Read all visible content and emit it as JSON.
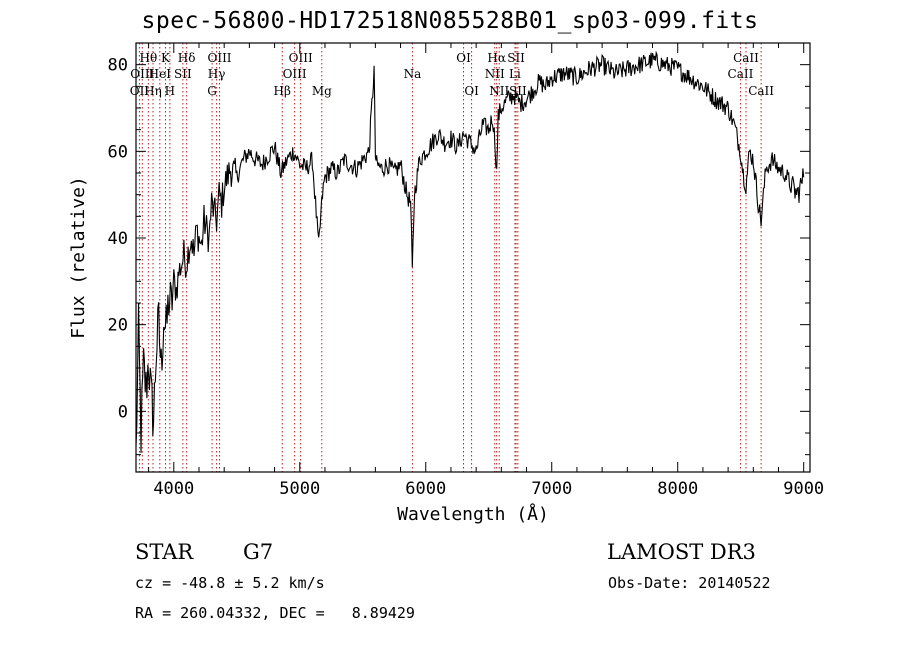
{
  "header": {
    "title": "spec-56800-HD172518N085528B01_sp03-099.fits"
  },
  "info": {
    "class": "STAR",
    "subclass": "G7",
    "survey": "LAMOST DR3",
    "cz": "cz = -48.8 ± 5.2 km/s",
    "obs_date": "Obs-Date: 20140522",
    "radec": "RA = 260.04332, DEC =   8.89429"
  },
  "colors": {
    "line_marker": "#b22222",
    "spectrum": "#000000"
  },
  "chart_data": {
    "type": "line",
    "title": "spec-56800-HD172518N085528B01_sp03-099.fits",
    "xlabel": "Wavelength (Å)",
    "ylabel": "Flux (relative)",
    "xlim": [
      3700,
      9050
    ],
    "ylim": [
      -14,
      85
    ],
    "xticks": [
      4000,
      5000,
      6000,
      7000,
      8000,
      9000
    ],
    "yticks": [
      0,
      20,
      40,
      60,
      80
    ],
    "grid": false,
    "series": [
      {
        "values_x": [
          3700,
          3720,
          3740,
          3760,
          3780,
          3800,
          3820,
          3840,
          3860,
          3880,
          3900,
          3920,
          3940,
          3960,
          3980,
          4000,
          4020,
          4040,
          4060,
          4080,
          4100,
          4120,
          4140,
          4160,
          4180,
          4200,
          4220,
          4240,
          4260,
          4280,
          4300,
          4320,
          4340,
          4360,
          4380,
          4400,
          4450,
          4500,
          4550,
          4600,
          4650,
          4700,
          4750,
          4800,
          4850,
          4900,
          4950,
          5000,
          5050,
          5100,
          5150,
          5180,
          5200,
          5250,
          5300,
          5350,
          5400,
          5450,
          5500,
          5550,
          5590,
          5600,
          5610,
          5650,
          5700,
          5750,
          5800,
          5850,
          5880,
          5893,
          5910,
          5950,
          6000,
          6050,
          6100,
          6150,
          6200,
          6250,
          6300,
          6350,
          6400,
          6450,
          6500,
          6530,
          6550,
          6563,
          6575,
          6600,
          6650,
          6700,
          6750,
          6800,
          6850,
          6900,
          6950,
          7000,
          7100,
          7200,
          7300,
          7400,
          7500,
          7600,
          7700,
          7800,
          7900,
          8000,
          8100,
          8200,
          8300,
          8400,
          8450,
          8498,
          8520,
          8542,
          8570,
          8600,
          8640,
          8662,
          8700,
          8750,
          8800,
          8850,
          8900,
          8950,
          9000
        ],
        "values_y": [
          -10,
          18,
          -5,
          10,
          5,
          12,
          3,
          -2,
          14,
          20,
          10,
          22,
          18,
          26,
          24,
          30,
          28,
          32,
          34,
          36,
          34,
          38,
          40,
          36,
          42,
          40,
          38,
          44,
          42,
          40,
          48,
          46,
          44,
          50,
          48,
          52,
          56,
          54,
          58,
          60,
          58,
          57,
          59,
          61,
          55,
          58,
          60,
          57,
          56,
          58,
          38,
          50,
          54,
          56,
          55,
          58,
          57,
          56,
          58,
          60,
          79,
          59,
          57,
          56,
          57,
          55,
          57,
          50,
          48,
          32,
          50,
          58,
          60,
          62,
          64,
          62,
          63,
          61,
          64,
          62,
          60,
          66,
          65,
          68,
          62,
          55,
          68,
          70,
          72,
          73,
          71,
          72,
          74,
          76,
          75,
          77,
          78,
          77,
          79,
          80,
          78,
          79,
          80,
          81,
          80,
          79,
          77,
          75,
          72,
          70,
          66,
          60,
          55,
          52,
          60,
          58,
          48,
          44,
          56,
          58,
          56,
          55,
          52,
          50,
          54
        ]
      }
    ],
    "line_markers": [
      {
        "label": "OII",
        "x": 3727,
        "row": 3
      },
      {
        "label": "Hθ",
        "x": 3798,
        "row": 1
      },
      {
        "label": "OIII",
        "x": 3750,
        "row": 2
      },
      {
        "label": "Hη",
        "x": 3835,
        "row": 3
      },
      {
        "label": "HeI",
        "x": 3889,
        "row": 2
      },
      {
        "label": "K",
        "x": 3934,
        "row": 1
      },
      {
        "label": "H",
        "x": 3969,
        "row": 3
      },
      {
        "label": "SII",
        "x": 4072,
        "row": 2
      },
      {
        "label": "Hδ",
        "x": 4102,
        "row": 1
      },
      {
        "label": "OIII",
        "x": 4363,
        "row": 1
      },
      {
        "label": "Hγ",
        "x": 4340,
        "row": 2
      },
      {
        "label": "G",
        "x": 4304,
        "row": 3
      },
      {
        "label": "Hβ",
        "x": 4861,
        "row": 3
      },
      {
        "label": "OIII",
        "x": 5007,
        "row": 1
      },
      {
        "label": "OIII",
        "x": 4959,
        "row": 2
      },
      {
        "label": "Mg",
        "x": 5175,
        "row": 3
      },
      {
        "label": "Na",
        "x": 5894,
        "row": 2
      },
      {
        "label": "OI",
        "x": 6300,
        "row": 1
      },
      {
        "label": "OI",
        "x": 6364,
        "row": 3
      },
      {
        "label": "Hα",
        "x": 6563,
        "row": 1
      },
      {
        "label": "SII",
        "x": 6717,
        "row": 1
      },
      {
        "label": "NII",
        "x": 6548,
        "row": 2
      },
      {
        "label": "Li",
        "x": 6708,
        "row": 2
      },
      {
        "label": "NII",
        "x": 6583,
        "row": 3
      },
      {
        "label": "SII",
        "x": 6731,
        "row": 3
      },
      {
        "label": "CaII",
        "x": 8498,
        "row": 2
      },
      {
        "label": "CaII",
        "x": 8542,
        "row": 1
      },
      {
        "label": "CaII",
        "x": 8662,
        "row": 3
      }
    ]
  }
}
